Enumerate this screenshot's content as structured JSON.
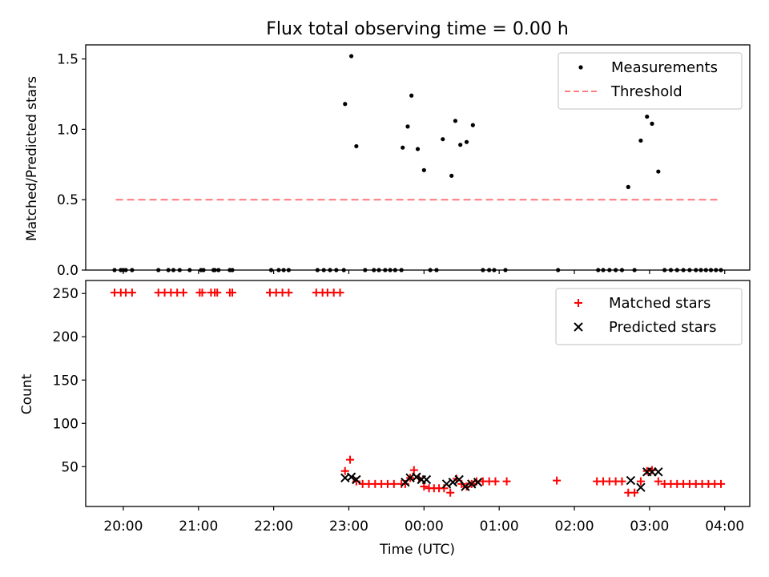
{
  "figure": {
    "title": "Flux total observing time = 0.00 h"
  },
  "chart_data": [
    {
      "type": "scatter",
      "panel": "top",
      "ylabel": "Matched/Predicted stars",
      "xlabel": "",
      "xlim": [
        "19:30",
        "04:20"
      ],
      "ylim": [
        0,
        1.6
      ],
      "yticks": [
        0.0,
        0.5,
        1.0,
        1.5
      ],
      "ytick_labels": [
        "0.0",
        "0.5",
        "1.0",
        "1.5"
      ],
      "legend_position": "top-right",
      "series": [
        {
          "name": "Measurements",
          "marker": "dot",
          "color": "#000000",
          "points": [
            [
              "19:53",
              0
            ],
            [
              "19:58",
              0
            ],
            [
              "20:00",
              0
            ],
            [
              "20:02",
              0
            ],
            [
              "20:07",
              0
            ],
            [
              "20:28",
              0
            ],
            [
              "20:36",
              0
            ],
            [
              "20:40",
              0
            ],
            [
              "20:45",
              0
            ],
            [
              "20:53",
              0
            ],
            [
              "21:02",
              0
            ],
            [
              "21:04",
              0
            ],
            [
              "21:12",
              0
            ],
            [
              "21:13",
              0
            ],
            [
              "21:16",
              0
            ],
            [
              "21:25",
              0
            ],
            [
              "21:27",
              0
            ],
            [
              "21:58",
              0
            ],
            [
              "22:04",
              0
            ],
            [
              "22:08",
              0
            ],
            [
              "22:12",
              0
            ],
            [
              "22:35",
              0
            ],
            [
              "22:40",
              0
            ],
            [
              "22:45",
              0
            ],
            [
              "22:50",
              0
            ],
            [
              "22:56",
              0
            ],
            [
              "22:57",
              1.18
            ],
            [
              "23:02",
              1.52
            ],
            [
              "23:06",
              0.88
            ],
            [
              "23:13",
              0
            ],
            [
              "23:20",
              0
            ],
            [
              "23:24",
              0
            ],
            [
              "23:29",
              0
            ],
            [
              "23:33",
              0
            ],
            [
              "23:37",
              0
            ],
            [
              "23:42",
              0
            ],
            [
              "23:43",
              0.87
            ],
            [
              "23:47",
              1.02
            ],
            [
              "23:50",
              1.24
            ],
            [
              "23:55",
              0.86
            ],
            [
              "00:00",
              0.71
            ],
            [
              "00:05",
              0
            ],
            [
              "00:10",
              0
            ],
            [
              "00:15",
              0.93
            ],
            [
              "00:22",
              0.67
            ],
            [
              "00:25",
              1.06
            ],
            [
              "00:29",
              0.89
            ],
            [
              "00:34",
              0.91
            ],
            [
              "00:39",
              1.03
            ],
            [
              "00:47",
              0
            ],
            [
              "00:52",
              0
            ],
            [
              "00:56",
              0
            ],
            [
              "01:05",
              0
            ],
            [
              "01:47",
              0
            ],
            [
              "02:19",
              0
            ],
            [
              "02:23",
              0
            ],
            [
              "02:28",
              0
            ],
            [
              "02:33",
              0
            ],
            [
              "02:38",
              0
            ],
            [
              "02:43",
              0.59
            ],
            [
              "02:48",
              0
            ],
            [
              "02:53",
              0.92
            ],
            [
              "02:58",
              1.09
            ],
            [
              "03:02",
              1.04
            ],
            [
              "03:07",
              0.7
            ],
            [
              "03:12",
              0
            ],
            [
              "03:17",
              0
            ],
            [
              "03:22",
              0
            ],
            [
              "03:27",
              0
            ],
            [
              "03:32",
              0
            ],
            [
              "03:37",
              0
            ],
            [
              "03:41",
              0
            ],
            [
              "03:45",
              0
            ],
            [
              "03:49",
              0
            ],
            [
              "03:53",
              0
            ],
            [
              "03:57",
              0
            ]
          ]
        },
        {
          "name": "Threshold",
          "marker": "dashed-line",
          "color": "#ff7f7f",
          "points": [
            [
              "19:54",
              0.5
            ],
            [
              "03:57",
              0.5
            ]
          ]
        }
      ]
    },
    {
      "type": "scatter",
      "panel": "bottom",
      "ylabel": "Count",
      "xlabel": "Time (UTC)",
      "xlim": [
        "19:30",
        "04:20"
      ],
      "ylim": [
        4,
        265
      ],
      "yticks": [
        50,
        100,
        150,
        200,
        250
      ],
      "ytick_labels": [
        "50",
        "100",
        "150",
        "200",
        "250"
      ],
      "xticks": [
        "20:00",
        "21:00",
        "22:00",
        "23:00",
        "00:00",
        "01:00",
        "02:00",
        "03:00",
        "04:00"
      ],
      "xtick_labels": [
        "20:00",
        "21:00",
        "22:00",
        "23:00",
        "00:00",
        "01:00",
        "02:00",
        "03:00",
        "04:00"
      ],
      "legend_position": "top-right",
      "series": [
        {
          "name": "Matched stars",
          "marker": "plus",
          "color": "#ff0000",
          "points": [
            [
              "19:53",
              251
            ],
            [
              "19:58",
              251
            ],
            [
              "20:02",
              251
            ],
            [
              "20:07",
              251
            ],
            [
              "20:28",
              251
            ],
            [
              "20:33",
              251
            ],
            [
              "20:38",
              251
            ],
            [
              "20:43",
              251
            ],
            [
              "20:48",
              251
            ],
            [
              "21:01",
              251
            ],
            [
              "21:03",
              251
            ],
            [
              "21:10",
              251
            ],
            [
              "21:13",
              251
            ],
            [
              "21:15",
              251
            ],
            [
              "21:25",
              251
            ],
            [
              "21:27",
              251
            ],
            [
              "21:57",
              251
            ],
            [
              "22:02",
              251
            ],
            [
              "22:07",
              251
            ],
            [
              "22:12",
              251
            ],
            [
              "22:34",
              251
            ],
            [
              "22:39",
              251
            ],
            [
              "22:43",
              251
            ],
            [
              "22:48",
              251
            ],
            [
              "22:53",
              251
            ],
            [
              "22:57",
              45
            ],
            [
              "23:01",
              58
            ],
            [
              "23:06",
              33
            ],
            [
              "23:11",
              30
            ],
            [
              "23:16",
              30
            ],
            [
              "23:21",
              30
            ],
            [
              "23:26",
              30
            ],
            [
              "23:31",
              30
            ],
            [
              "23:36",
              30
            ],
            [
              "23:42",
              30
            ],
            [
              "23:45",
              30
            ],
            [
              "23:49",
              37
            ],
            [
              "23:52",
              46
            ],
            [
              "23:56",
              37
            ],
            [
              "00:00",
              27
            ],
            [
              "00:04",
              25
            ],
            [
              "00:08",
              25
            ],
            [
              "00:12",
              25
            ],
            [
              "00:16",
              25
            ],
            [
              "00:21",
              20
            ],
            [
              "00:26",
              36
            ],
            [
              "00:30",
              30
            ],
            [
              "00:34",
              27
            ],
            [
              "00:38",
              30
            ],
            [
              "00:42",
              33
            ],
            [
              "00:47",
              33
            ],
            [
              "00:52",
              33
            ],
            [
              "00:57",
              33
            ],
            [
              "01:06",
              33
            ],
            [
              "01:46",
              34
            ],
            [
              "02:18",
              33
            ],
            [
              "02:23",
              33
            ],
            [
              "02:28",
              33
            ],
            [
              "02:33",
              33
            ],
            [
              "02:38",
              33
            ],
            [
              "02:43",
              20
            ],
            [
              "02:48",
              20
            ],
            [
              "02:53",
              33
            ],
            [
              "02:58",
              45
            ],
            [
              "03:02",
              46
            ],
            [
              "03:07",
              33
            ],
            [
              "03:12",
              30
            ],
            [
              "03:17",
              30
            ],
            [
              "03:22",
              30
            ],
            [
              "03:27",
              30
            ],
            [
              "03:32",
              30
            ],
            [
              "03:37",
              30
            ],
            [
              "03:42",
              30
            ],
            [
              "03:47",
              30
            ],
            [
              "03:52",
              30
            ],
            [
              "03:57",
              30
            ]
          ]
        },
        {
          "name": "Predicted stars",
          "marker": "x",
          "color": "#000000",
          "points": [
            [
              "22:57",
              37
            ],
            [
              "23:02",
              38
            ],
            [
              "23:06",
              35
            ],
            [
              "23:45",
              32
            ],
            [
              "23:49",
              37
            ],
            [
              "23:54",
              38
            ],
            [
              "23:58",
              35
            ],
            [
              "00:02",
              35
            ],
            [
              "00:18",
              30
            ],
            [
              "00:23",
              32
            ],
            [
              "00:28",
              35
            ],
            [
              "00:33",
              27
            ],
            [
              "00:38",
              30
            ],
            [
              "00:43",
              32
            ],
            [
              "02:45",
              34
            ],
            [
              "02:53",
              26
            ],
            [
              "02:58",
              44
            ],
            [
              "03:02",
              44
            ],
            [
              "03:07",
              44
            ]
          ]
        }
      ]
    }
  ]
}
